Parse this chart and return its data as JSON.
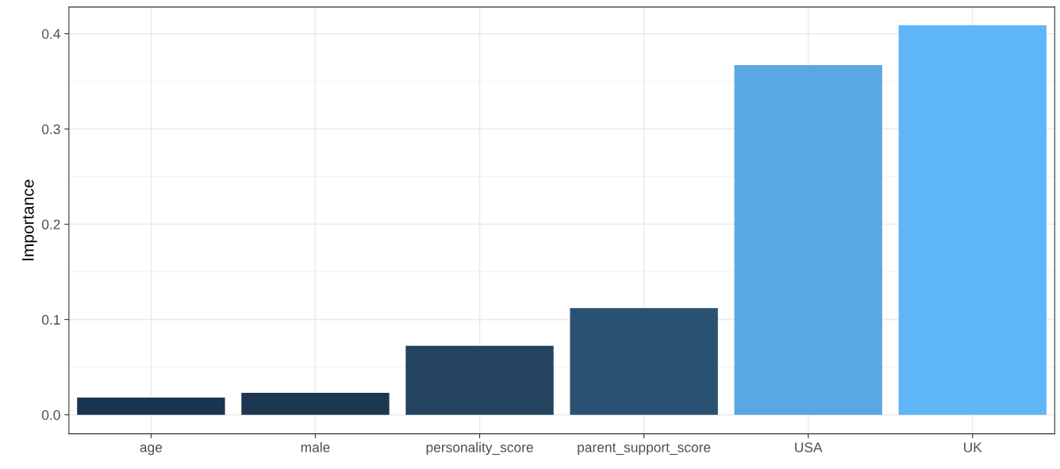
{
  "chart_data": {
    "type": "bar",
    "ylabel": "Importance",
    "categories": [
      "age",
      "male",
      "personality_score",
      "parent_support_score",
      "USA",
      "UK"
    ],
    "values": [
      0.018,
      0.023,
      0.0725,
      0.112,
      0.367,
      0.409
    ],
    "colors": [
      "#1b3550",
      "#1d3750",
      "#234361",
      "#2b5172",
      "#5aa8e3",
      "#5fb6f6"
    ],
    "ylim": [
      -0.02,
      0.428
    ],
    "yticks": [
      {
        "value": 0,
        "label": "0.0"
      },
      0.1,
      0.2,
      0.3,
      0.4
    ],
    "grid": true
  }
}
